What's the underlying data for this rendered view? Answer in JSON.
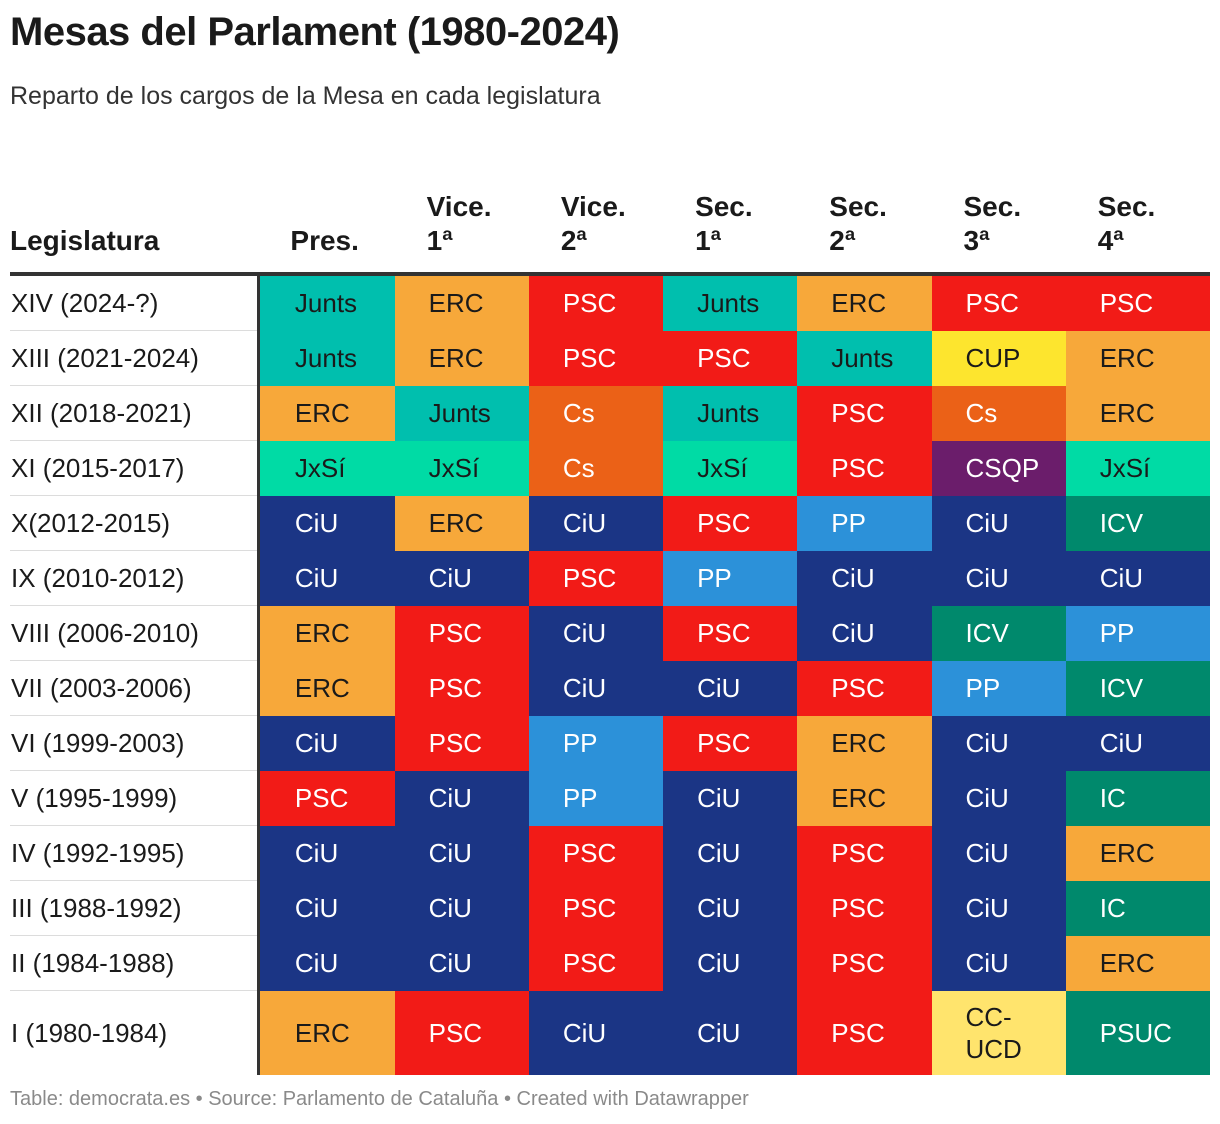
{
  "title": "Mesas del Parlament (1980-2024)",
  "subtitle": "Reparto de los cargos de la Mesa en cada legislatura",
  "footer": "Table: democrata.es • Source: Parlamento de Cataluña • Created with Datawrapper",
  "colors": {
    "Junts": "#00bfae",
    "ERC": "#f7a83a",
    "PSC": "#f21b17",
    "Cs": "#eb6117",
    "JxSí": "#00dba5",
    "CSQP": "#6b1d6b",
    "CUP": "#fde52e",
    "CiU": "#1b3585",
    "PP": "#2c91d9",
    "ICV": "#00896c",
    "IC": "#00896c",
    "PSUC": "#00896c",
    "CC-\nUCD": "#ffe46d"
  },
  "light_text_parties": [
    "PSC",
    "Cs",
    "CSQP",
    "CiU",
    "PP",
    "ICV",
    "IC",
    "PSUC"
  ],
  "chart_data": {
    "type": "table",
    "columns": [
      "Legislatura",
      "Pres.",
      "Vice.\n1ª",
      "Vice.\n2ª",
      "Sec.\n1ª",
      "Sec.\n2ª",
      "Sec.\n3ª",
      "Sec.\n4ª"
    ],
    "rows": [
      {
        "legislatura": "XIV (2024-?)",
        "cells": [
          "Junts",
          "ERC",
          "PSC",
          "Junts",
          "ERC",
          "PSC",
          "PSC"
        ]
      },
      {
        "legislatura": "XIII (2021-2024)",
        "cells": [
          "Junts",
          "ERC",
          "PSC",
          "PSC",
          "Junts",
          "CUP",
          "ERC"
        ]
      },
      {
        "legislatura": "XII (2018-2021)",
        "cells": [
          "ERC",
          "Junts",
          "Cs",
          "Junts",
          "PSC",
          "Cs",
          "ERC"
        ]
      },
      {
        "legislatura": "XI (2015-2017)",
        "cells": [
          "JxSí",
          "JxSí",
          "Cs",
          "JxSí",
          "PSC",
          "CSQP",
          "JxSí"
        ]
      },
      {
        "legislatura": "X(2012-2015)",
        "cells": [
          "CiU",
          "ERC",
          "CiU",
          "PSC",
          "PP",
          "CiU",
          "ICV"
        ]
      },
      {
        "legislatura": "IX (2010-2012)",
        "cells": [
          "CiU",
          "CiU",
          "PSC",
          "PP",
          "CiU",
          "CiU",
          "CiU"
        ]
      },
      {
        "legislatura": "VIII (2006-2010)",
        "cells": [
          "ERC",
          "PSC",
          "CiU",
          "PSC",
          "CiU",
          "ICV",
          "PP"
        ]
      },
      {
        "legislatura": "VII (2003-2006)",
        "cells": [
          "ERC",
          "PSC",
          "CiU",
          "CiU",
          "PSC",
          "PP",
          "ICV"
        ]
      },
      {
        "legislatura": "VI (1999-2003)",
        "cells": [
          "CiU",
          "PSC",
          "PP",
          "PSC",
          "ERC",
          "CiU",
          "CiU"
        ]
      },
      {
        "legislatura": "V (1995-1999)",
        "cells": [
          "PSC",
          "CiU",
          "PP",
          "CiU",
          "ERC",
          "CiU",
          "IC"
        ]
      },
      {
        "legislatura": "IV (1992-1995)",
        "cells": [
          "CiU",
          "CiU",
          "PSC",
          "CiU",
          "PSC",
          "CiU",
          "ERC"
        ]
      },
      {
        "legislatura": "III (1988-1992)",
        "cells": [
          "CiU",
          "CiU",
          "PSC",
          "CiU",
          "PSC",
          "CiU",
          "IC"
        ]
      },
      {
        "legislatura": "II (1984-1988)",
        "cells": [
          "CiU",
          "CiU",
          "PSC",
          "CiU",
          "PSC",
          "CiU",
          "ERC"
        ]
      },
      {
        "legislatura": "I (1980-1984)",
        "cells": [
          "ERC",
          "PSC",
          "CiU",
          "CiU",
          "PSC",
          "CC-\nUCD",
          "PSUC"
        ]
      }
    ]
  }
}
